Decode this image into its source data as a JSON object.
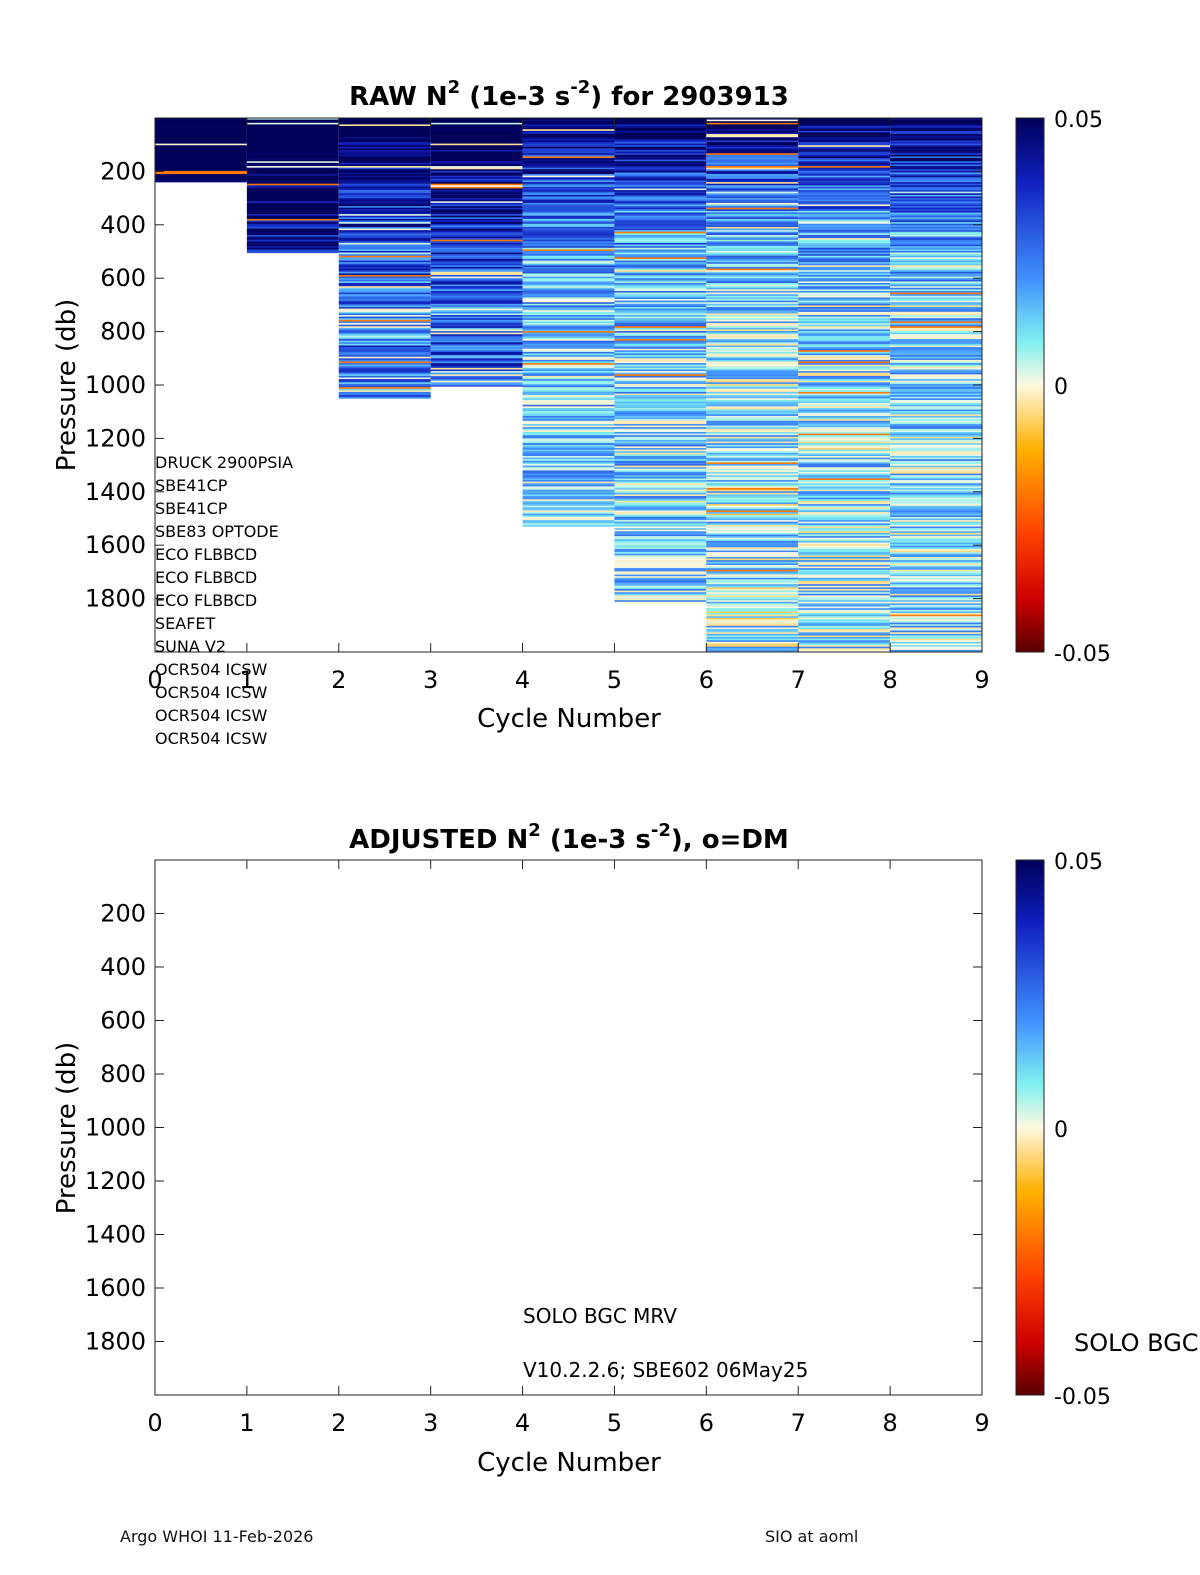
{
  "footer": {
    "left": "Argo WHOI 11-Feb-2026",
    "right": "SIO at aoml"
  },
  "chart_data": [
    {
      "type": "heatmap",
      "title_main": "RAW N",
      "title_sup1": "2",
      "title_mid": " (1e-3 s",
      "title_sup2": "-2",
      "title_tail": ") for 2903913",
      "xlabel": "Cycle Number",
      "ylabel": "Pressure (db)",
      "xlim": [
        0,
        9
      ],
      "ylim": [
        2000,
        0
      ],
      "xticks": [
        "0",
        "1",
        "2",
        "3",
        "4",
        "5",
        "6",
        "7",
        "8",
        "9"
      ],
      "yticks": [
        "200",
        "400",
        "600",
        "800",
        "1000",
        "1200",
        "1400",
        "1600",
        "1800"
      ],
      "colorbar": {
        "min": -0.05,
        "max": 0.05,
        "labels": [
          "0.05",
          "0",
          "-0.05"
        ]
      },
      "profiles": [
        {
          "cycle": 1,
          "max_pressure": 240,
          "dominant": 0.048
        },
        {
          "cycle": 2,
          "max_pressure": 505,
          "dominant": 0.04
        },
        {
          "cycle": 3,
          "max_pressure": 1050,
          "dominant": 0.025
        },
        {
          "cycle": 4,
          "max_pressure": 1005,
          "dominant": 0.028
        },
        {
          "cycle": 5,
          "max_pressure": 1530,
          "dominant": 0.012
        },
        {
          "cycle": 6,
          "max_pressure": 1820,
          "dominant": 0.012
        },
        {
          "cycle": 7,
          "max_pressure": 2000,
          "dominant": 0.008
        },
        {
          "cycle": 8,
          "max_pressure": 2000,
          "dominant": 0.009
        },
        {
          "cycle": 9,
          "max_pressure": 2000,
          "dominant": 0.01
        }
      ],
      "sensors": [
        "DRUCK 2900PSIA",
        "SBE41CP",
        "SBE41CP",
        "SBE83 OPTODE",
        "ECO FLBBCD",
        "ECO FLBBCD",
        "ECO FLBBCD",
        "SEAFET",
        "SUNA V2",
        "OCR504 ICSW",
        "OCR504 ICSW",
        "OCR504 ICSW",
        "OCR504 ICSW"
      ]
    },
    {
      "type": "heatmap",
      "title_main": "ADJUSTED N",
      "title_sup1": "2",
      "title_mid": " (1e-3 s",
      "title_sup2": "-2",
      "title_tail": "), o=DM",
      "xlabel": "Cycle Number",
      "ylabel": "Pressure (db)",
      "xlim": [
        0,
        9
      ],
      "ylim": [
        2000,
        0
      ],
      "xticks": [
        "0",
        "1",
        "2",
        "3",
        "4",
        "5",
        "6",
        "7",
        "8",
        "9"
      ],
      "yticks": [
        "200",
        "400",
        "600",
        "800",
        "1000",
        "1200",
        "1400",
        "1600",
        "1800"
      ],
      "colorbar": {
        "min": -0.05,
        "max": 0.05,
        "labels": [
          "0.05",
          "0",
          "-0.05"
        ]
      },
      "profiles": [],
      "annotations": [
        "SOLO BGC MRV",
        "V10.2.2.6; SBE602 06May25"
      ],
      "side_label": "SOLO BGC"
    }
  ]
}
